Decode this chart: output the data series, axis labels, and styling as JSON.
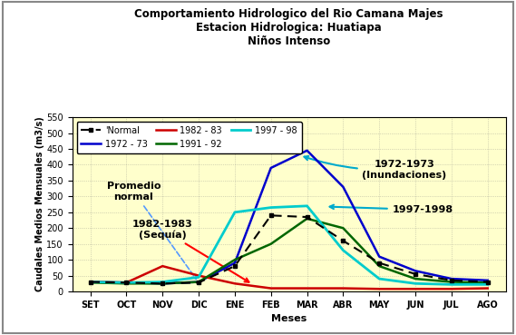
{
  "title_line1": "Comportamiento Hidrologico del Rio Camana Majes",
  "title_line2": "Estacion Hidrologica: Huatiapa",
  "title_line3": "Niños Intenso",
  "xlabel": "Meses",
  "ylabel": "Caudales Medios Mensuales (m3/s)",
  "months": [
    "SET",
    "OCT",
    "NOV",
    "DIC",
    "ENE",
    "FEB",
    "MAR",
    "ABR",
    "MAY",
    "JUN",
    "JUL",
    "AGO"
  ],
  "ylim": [
    0,
    550
  ],
  "yticks": [
    0,
    50,
    100,
    150,
    200,
    250,
    300,
    350,
    400,
    450,
    500,
    550
  ],
  "normal": [
    30,
    28,
    25,
    28,
    80,
    240,
    235,
    160,
    90,
    55,
    35,
    30
  ],
  "y1972": [
    30,
    28,
    25,
    30,
    90,
    390,
    445,
    330,
    110,
    65,
    40,
    35
  ],
  "y1982": [
    30,
    28,
    80,
    50,
    25,
    10,
    10,
    10,
    8,
    8,
    8,
    10
  ],
  "y1991": [
    28,
    25,
    25,
    30,
    100,
    150,
    230,
    200,
    80,
    40,
    30,
    28
  ],
  "y1997": [
    30,
    28,
    30,
    45,
    250,
    265,
    270,
    130,
    40,
    25,
    22,
    22
  ],
  "color_normal": "#000000",
  "color_1972": "#0000cc",
  "color_1982": "#cc0000",
  "color_1991": "#006600",
  "color_1997": "#00cccc",
  "outer_bg": "#ffffff",
  "plot_bg": "#ffffcc",
  "annotation_promedio": "Promedio\nnormal",
  "annotation_1982": "1982-1983\n(Sequía)",
  "annotation_1972": "1972-1973\n(Inundaciones)",
  "annotation_1997": "1997-1998"
}
